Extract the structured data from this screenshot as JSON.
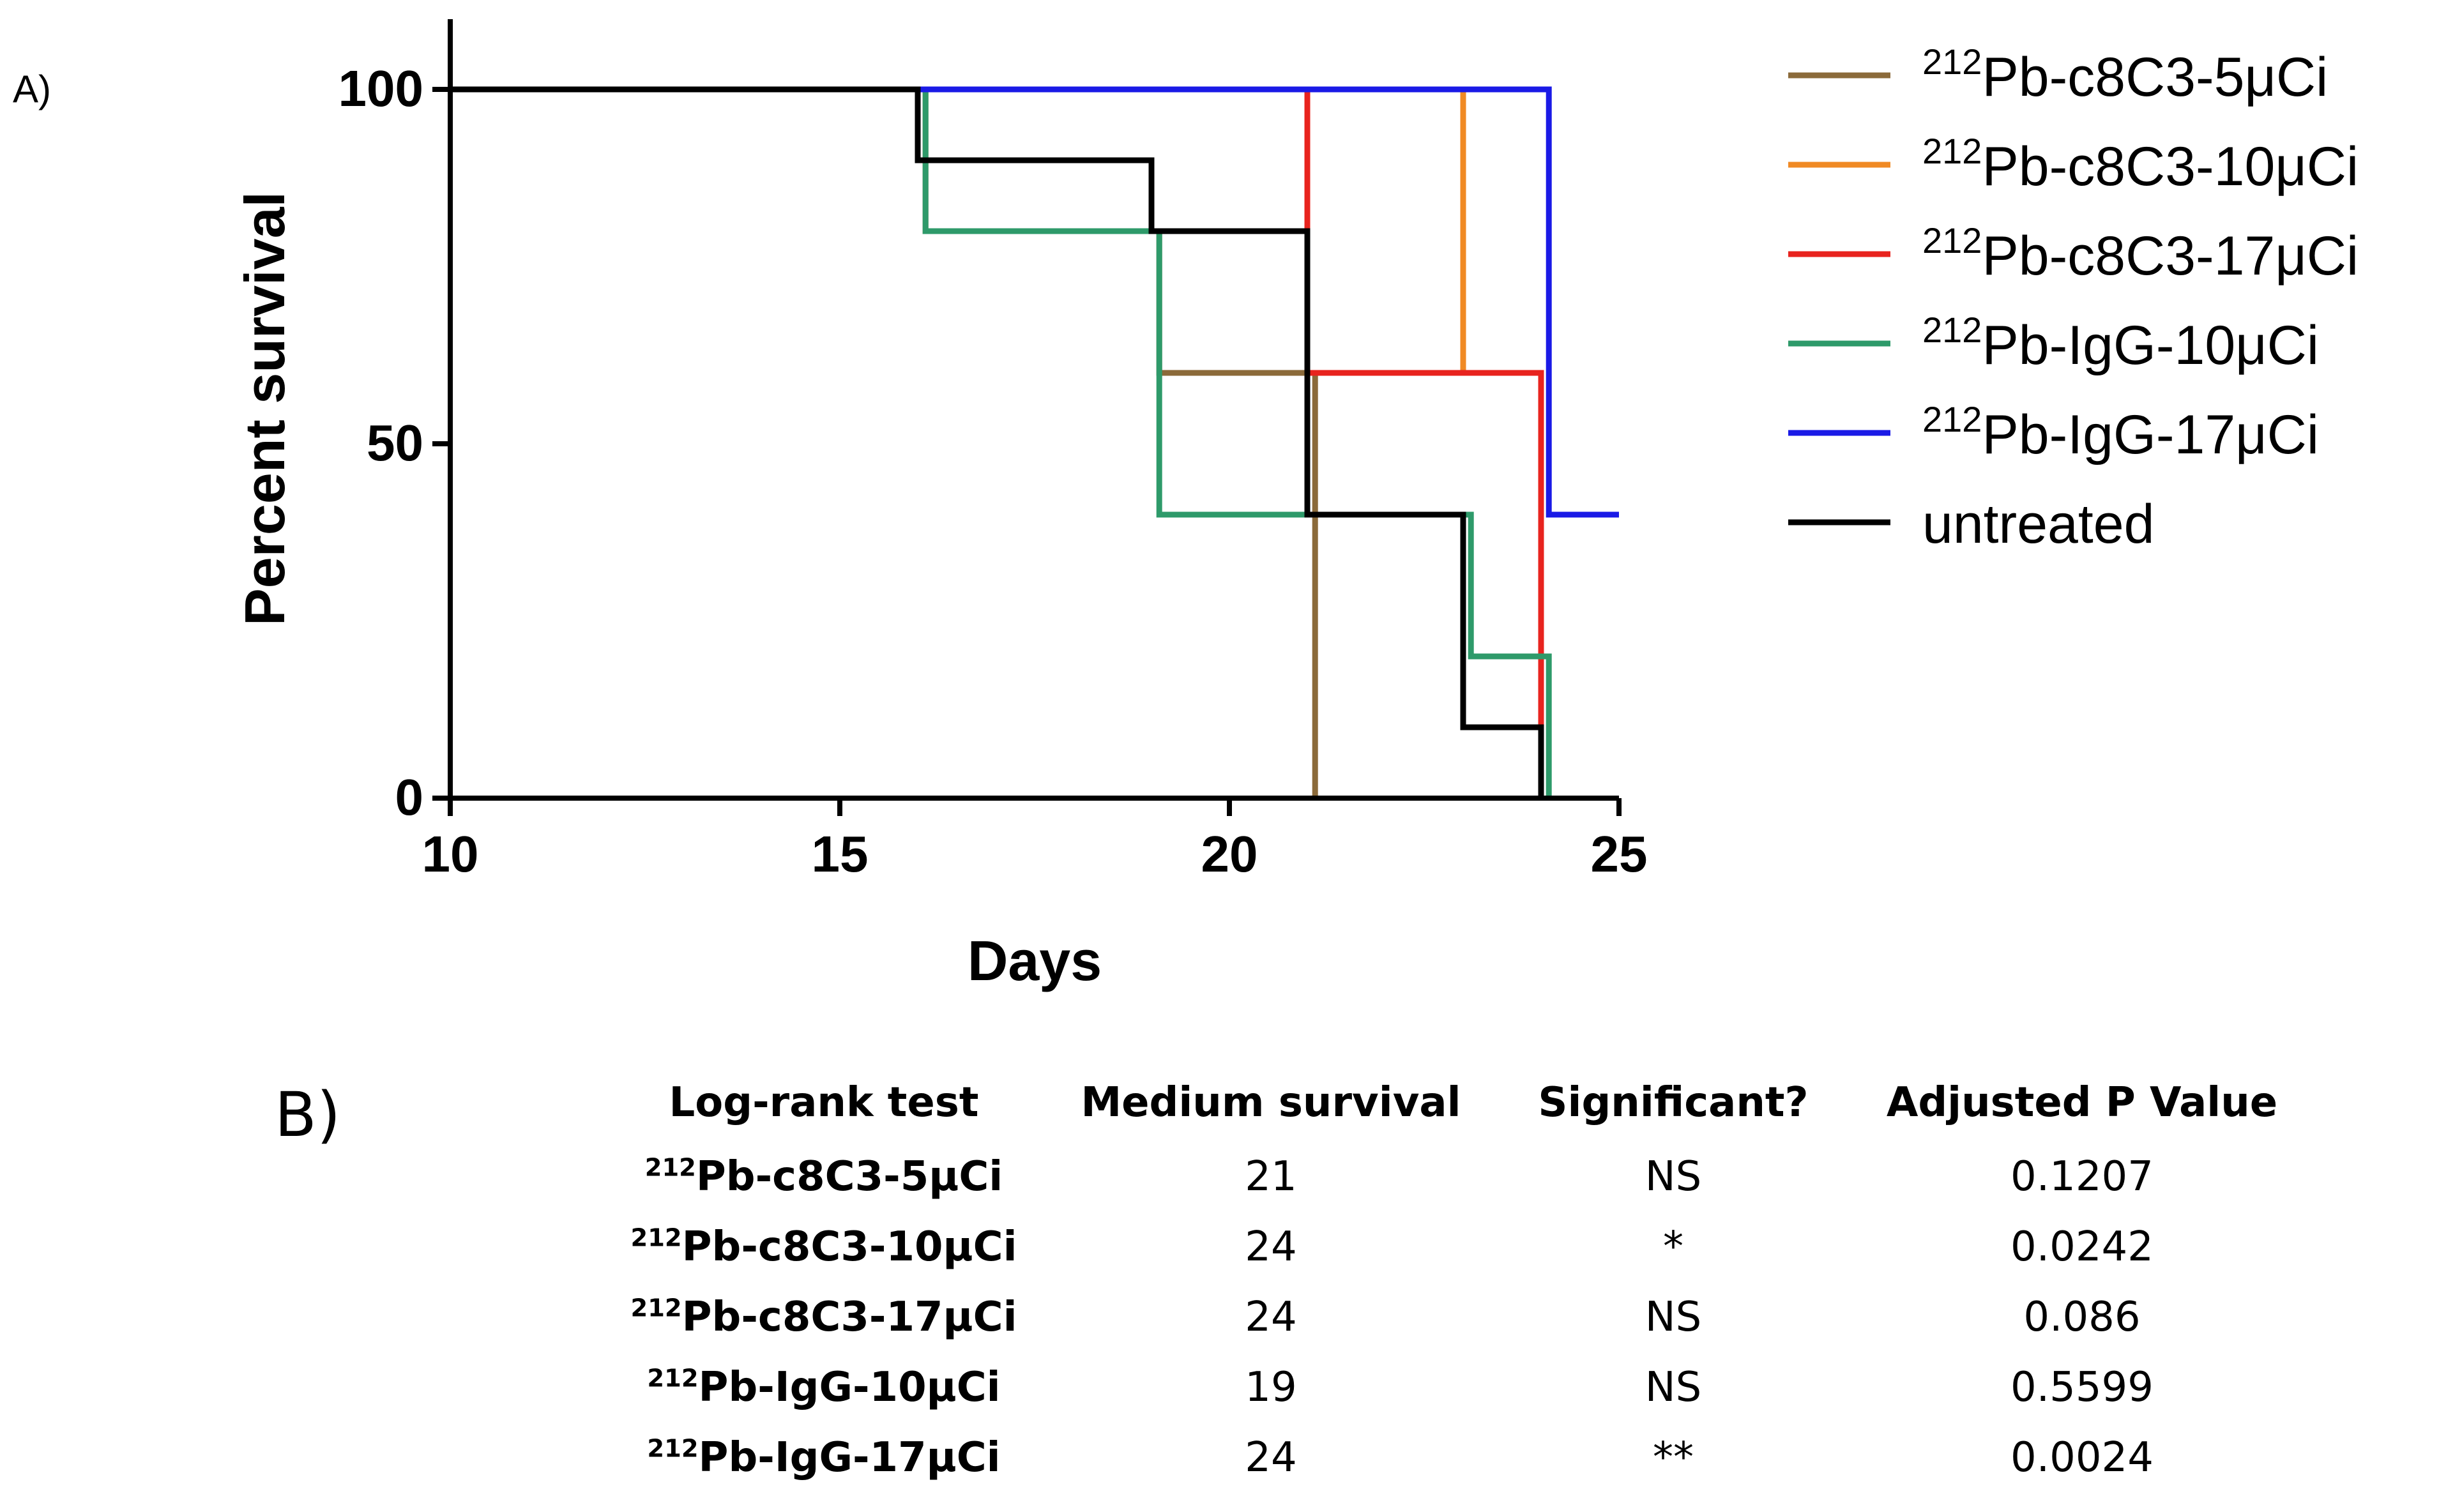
{
  "panel_labels": {
    "a": "A)",
    "b": "B)"
  },
  "chart_data": {
    "type": "line",
    "step": true,
    "xlabel": "Days",
    "ylabel": "Percent survival",
    "xlim": [
      10,
      25
    ],
    "ylim": [
      0,
      100
    ],
    "xticks": [
      10,
      15,
      20,
      25
    ],
    "yticks": [
      0,
      50,
      100
    ],
    "grid": false,
    "legend_position": "right",
    "series": [
      {
        "name_sup": "212",
        "name": "Pb-c8C3-5μCi",
        "color": "#8B6A3A",
        "x": [
          10,
          16.1,
          19.1,
          21.1
        ],
        "y": [
          100,
          80,
          60,
          0
        ]
      },
      {
        "name_sup": "212",
        "name": "Pb-c8C3-10μCi",
        "color": "#F08A24",
        "x": [
          10,
          23,
          24
        ],
        "y": [
          100,
          60,
          0
        ]
      },
      {
        "name_sup": "212",
        "name": "Pb-c8C3-17μCi",
        "color": "#E8231E",
        "x": [
          10,
          21,
          24
        ],
        "y": [
          100,
          60,
          0
        ]
      },
      {
        "name_sup": "212",
        "name": "Pb-IgG-10μCi",
        "color": "#2E9A6A",
        "x": [
          10,
          16.1,
          19.1,
          23.1,
          24.1
        ],
        "y": [
          100,
          80,
          40,
          20,
          0
        ]
      },
      {
        "name_sup": "212",
        "name": "Pb-IgG-17μCi",
        "color": "#1A1AE6",
        "x": [
          10,
          24.1,
          25
        ],
        "y": [
          100,
          40,
          40
        ]
      },
      {
        "name_sup": "",
        "name": "untreated",
        "color": "#000000",
        "x": [
          10,
          16,
          19,
          21,
          23,
          24
        ],
        "y": [
          100,
          90,
          80,
          40,
          10,
          0
        ]
      }
    ]
  },
  "table": {
    "headers": [
      "Log-rank test",
      "Medium survival",
      "Significant?",
      "Adjusted P Value"
    ],
    "rows": [
      {
        "name_sup": "212",
        "name": "Pb-c8C3-5μCi",
        "median": "21",
        "significant": "NS",
        "p": "0.1207"
      },
      {
        "name_sup": "212",
        "name": "Pb-c8C3-10μCi",
        "median": "24",
        "significant": "*",
        "p": "0.0242"
      },
      {
        "name_sup": "212",
        "name": "Pb-c8C3-17μCi",
        "median": "24",
        "significant": "NS",
        "p": "0.086"
      },
      {
        "name_sup": "212",
        "name": "Pb-IgG-10μCi",
        "median": "19",
        "significant": "NS",
        "p": "0.5599"
      },
      {
        "name_sup": "212",
        "name": "Pb-IgG-17μCi",
        "median": "24",
        "significant": "**",
        "p": "0.0024"
      }
    ]
  }
}
